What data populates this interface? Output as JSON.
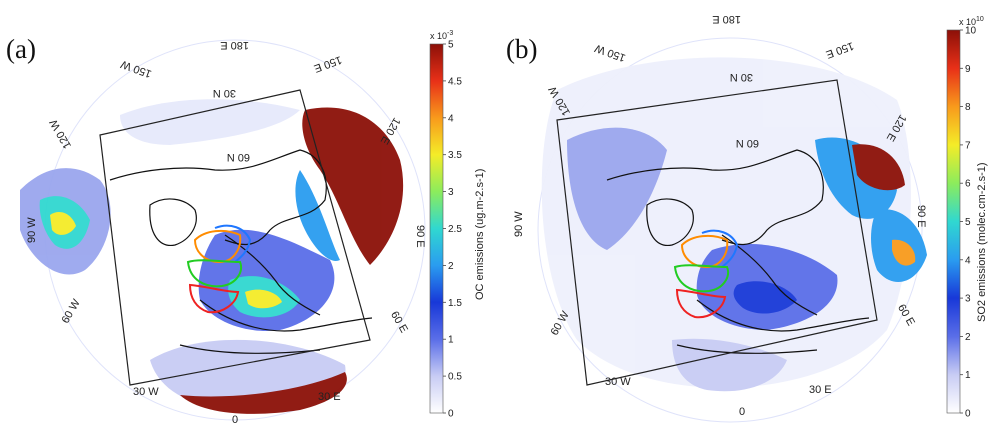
{
  "panels": [
    {
      "id": "a",
      "label": "(a)",
      "colorbar": {
        "title": "OC emissions (ug.m-2.s-1)",
        "multiplier_base": "x 10",
        "multiplier_exp": "-3",
        "ticks": [
          "0",
          "0.5",
          "1",
          "1.5",
          "2",
          "2.5",
          "3",
          "3.5",
          "4",
          "4.5",
          "5"
        ],
        "min": 0,
        "max": 5
      },
      "lon_labels": [
        "180 E",
        "150 E",
        "150 W",
        "120 W",
        "120 E",
        "90 W",
        "90 E",
        "60 W",
        "60 E",
        "30 W",
        "30 E",
        "0"
      ],
      "lat_labels": [
        "30 N",
        "60 N"
      ]
    },
    {
      "id": "b",
      "label": "(b)",
      "colorbar": {
        "title": "SO2 emissions (molec.cm-2.s-1)",
        "multiplier_base": "x 10",
        "multiplier_exp": "10",
        "ticks": [
          "0",
          "1",
          "2",
          "3",
          "4",
          "5",
          "6",
          "7",
          "8",
          "9",
          "10"
        ],
        "min": 0,
        "max": 10
      },
      "lon_labels": [
        "180 E",
        "150 E",
        "150 W",
        "120 W",
        "120 E",
        "90 W",
        "90 E",
        "60 W",
        "60 E",
        "30 W",
        "30 E",
        "0"
      ],
      "lat_labels": [
        "30 N",
        "60 N"
      ]
    }
  ],
  "colormap": [
    "#ffffff",
    "#c8ccf4",
    "#5a6ee8",
    "#1838d8",
    "#2a9cf0",
    "#30d8d0",
    "#8cec5c",
    "#f4ec28",
    "#f89a1c",
    "#e83018",
    "#8c1008"
  ],
  "region_outline_colors": [
    "#ff8c00",
    "#1f77ff",
    "#22cc22",
    "#ee2222"
  ]
}
